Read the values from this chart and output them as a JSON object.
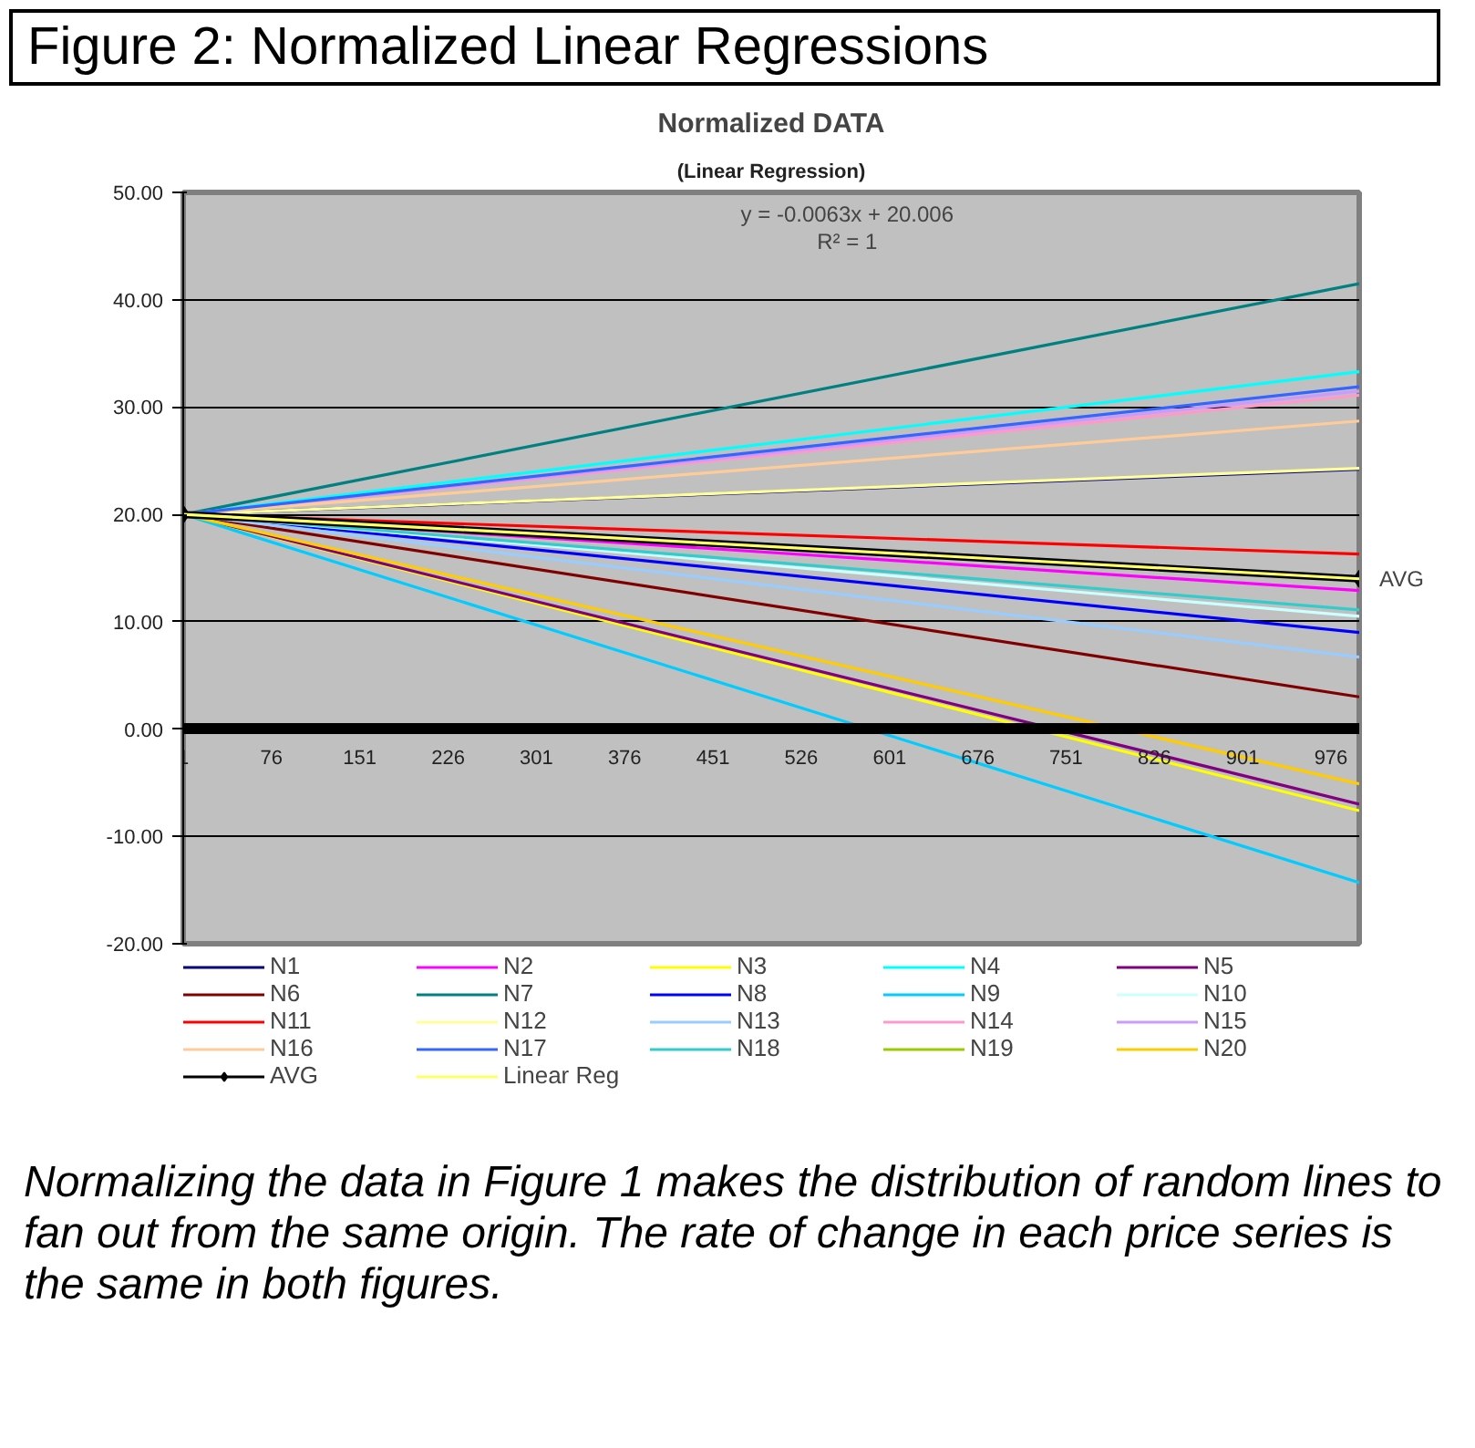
{
  "chart_data": {
    "type": "line",
    "title": "Normalized DATA",
    "subtitle": "(Linear Regression)",
    "x": [
      1,
      1000
    ],
    "xlim": [
      1,
      1000
    ],
    "xticks": [
      1,
      76,
      151,
      226,
      301,
      376,
      451,
      526,
      601,
      676,
      751,
      826,
      901,
      976
    ],
    "ylim": [
      -20,
      50
    ],
    "yticks": [
      {
        "value": 50,
        "label": "50.00"
      },
      {
        "value": 40,
        "label": "40.00"
      },
      {
        "value": 30,
        "label": "30.00"
      },
      {
        "value": 20,
        "label": "20.00"
      },
      {
        "value": 10,
        "label": "10.00"
      },
      {
        "value": 0,
        "label": "0.00"
      },
      {
        "value": -10,
        "label": "-10.00"
      },
      {
        "value": -20,
        "label": "-20.00"
      }
    ],
    "grid": "y",
    "legend": "bottom",
    "series": [
      {
        "name": "N1",
        "color": "#000080",
        "values": [
          20,
          24.2
        ]
      },
      {
        "name": "N2",
        "color": "#ff00ff",
        "values": [
          20,
          12.9
        ]
      },
      {
        "name": "N3",
        "color": "#ffff00",
        "values": [
          20,
          -7.6
        ]
      },
      {
        "name": "N4",
        "color": "#00ffff",
        "values": [
          20,
          33.3
        ]
      },
      {
        "name": "N5",
        "color": "#800080",
        "values": [
          20,
          -7.0
        ]
      },
      {
        "name": "N6",
        "color": "#800000",
        "values": [
          20,
          3.0
        ]
      },
      {
        "name": "N7",
        "color": "#008080",
        "values": [
          20,
          41.5
        ]
      },
      {
        "name": "N8",
        "color": "#0000ff",
        "values": [
          20,
          9.0
        ]
      },
      {
        "name": "N9",
        "color": "#00ccff",
        "values": [
          20,
          -14.3
        ]
      },
      {
        "name": "N10",
        "color": "#ccffff",
        "values": [
          20,
          10.5
        ]
      },
      {
        "name": "N11",
        "color": "#ff0000",
        "values": [
          20,
          16.3
        ]
      },
      {
        "name": "N12",
        "color": "#ffff99",
        "values": [
          20,
          24.3
        ]
      },
      {
        "name": "N13",
        "color": "#99ccff",
        "values": [
          20,
          6.7
        ]
      },
      {
        "name": "N14",
        "color": "#ff99cc",
        "values": [
          20,
          31.1
        ]
      },
      {
        "name": "N15",
        "color": "#cc99ff",
        "values": [
          20,
          31.5
        ]
      },
      {
        "name": "N16",
        "color": "#ffcc99",
        "values": [
          20,
          28.7
        ]
      },
      {
        "name": "N17",
        "color": "#3366ff",
        "values": [
          20,
          31.9
        ]
      },
      {
        "name": "N18",
        "color": "#33cccc",
        "values": [
          20,
          11.1
        ]
      },
      {
        "name": "N19",
        "color": "#99cc00",
        "values": [
          null,
          null
        ]
      },
      {
        "name": "N20",
        "color": "#ffcc00",
        "values": [
          20,
          -5.1
        ]
      },
      {
        "name": "AVG",
        "color": "#000000",
        "marker": "diamond",
        "values": [
          20,
          14.0
        ]
      },
      {
        "name": "Linear Reg",
        "color": "#ffff66",
        "values": [
          20,
          14.0
        ]
      }
    ],
    "annotations": [
      "Figure 2: Normalized Linear Regressions",
      "y = -0.0063x + 20.006",
      "R² = 1",
      {
        "text": "AVG",
        "x": 1000,
        "y": 14.0
      },
      "Normalizing the data in Figure 1 makes the distribution of random lines to fan out from the same origin. The rate of change in each price series is the same in both figures."
    ]
  }
}
